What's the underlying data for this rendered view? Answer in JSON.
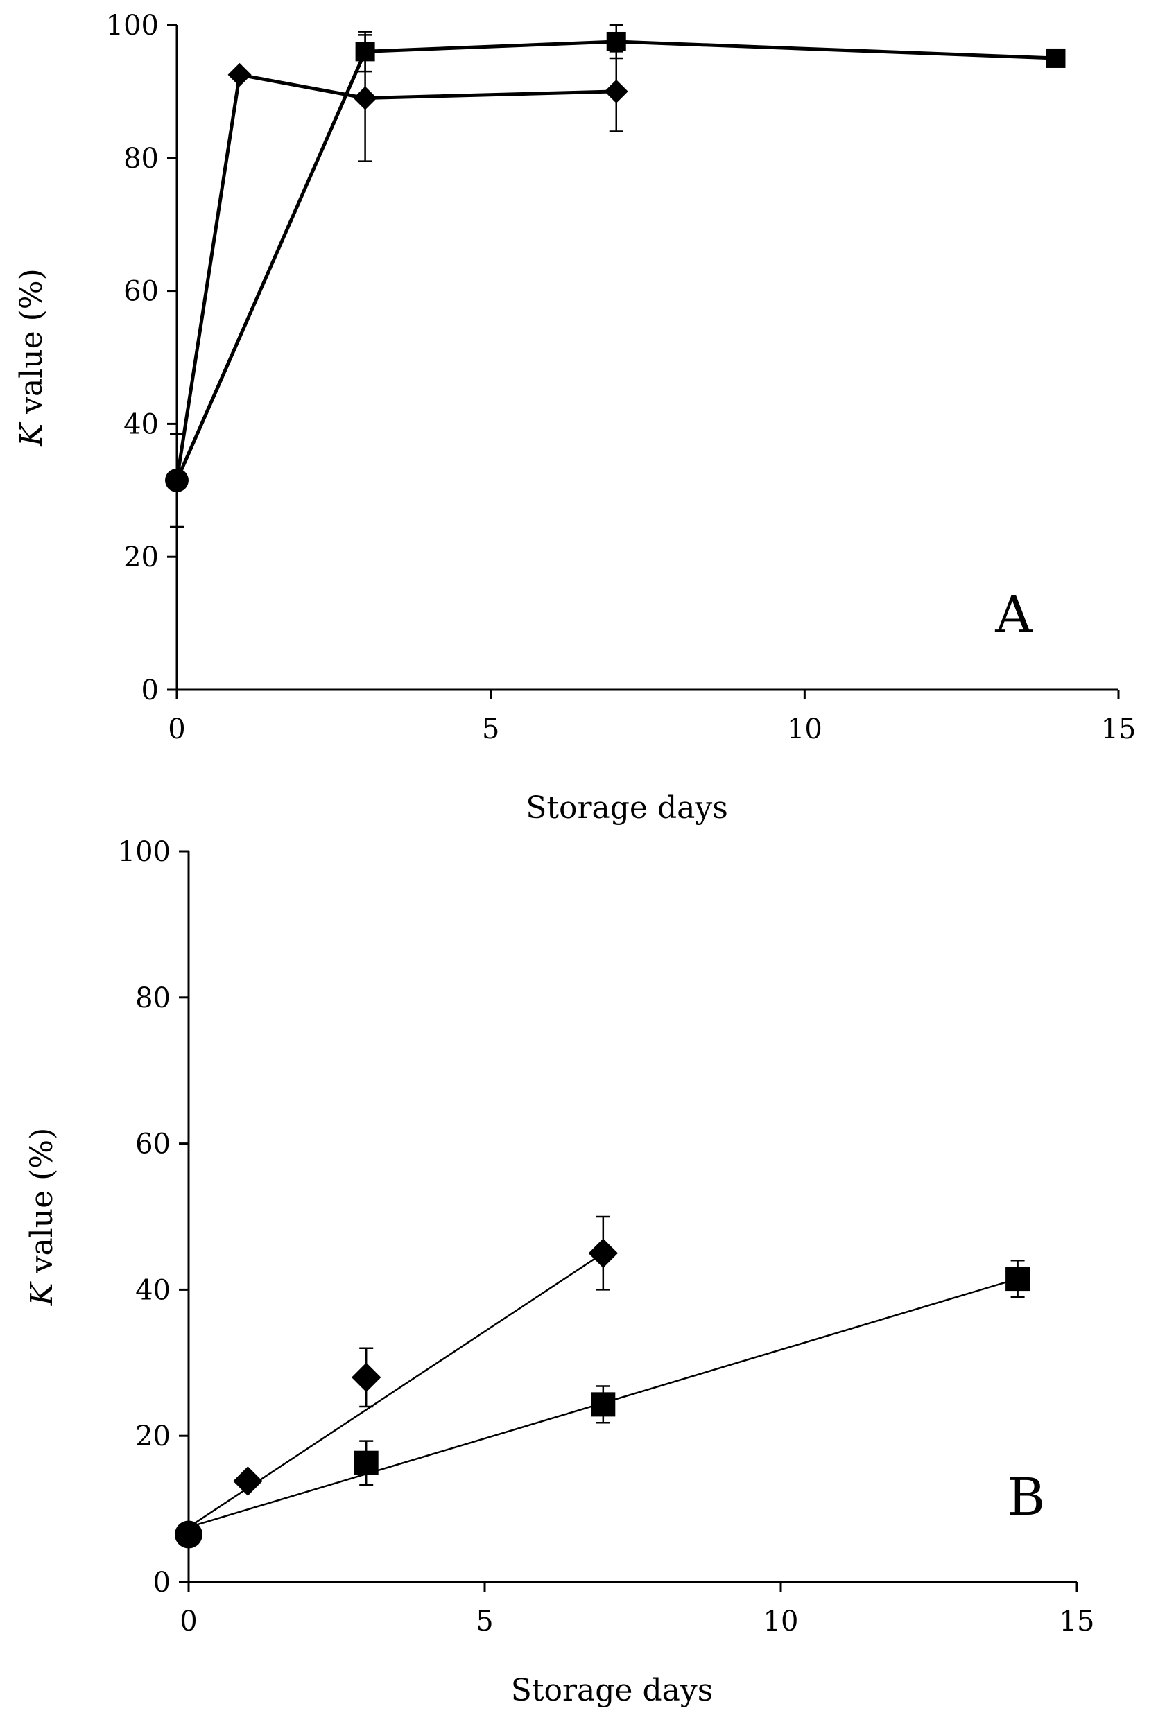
{
  "chart_data": [
    {
      "type": "line",
      "panel_label": "A",
      "xlabel": "Storage days",
      "ylabel_italic": "K",
      "ylabel_rest": " value (%)",
      "xlim": [
        0,
        15
      ],
      "ylim": [
        0,
        100
      ],
      "xticks": [
        0,
        5,
        10,
        15
      ],
      "yticks": [
        0,
        20,
        40,
        60,
        80,
        100
      ],
      "xtick_labels": [
        "0",
        "5",
        "10",
        "15"
      ],
      "ytick_labels": [
        "0",
        "20",
        "40",
        "60",
        "80",
        "100"
      ],
      "initial_point": {
        "marker": "circle",
        "x": 0,
        "y": 31.5,
        "err": 7
      },
      "series": [
        {
          "name": "diamond",
          "marker": "diamond",
          "x": [
            0,
            1,
            3,
            7
          ],
          "y": [
            31.5,
            92.5,
            89,
            90
          ],
          "err": [
            null,
            null,
            9.5,
            6
          ]
        },
        {
          "name": "square",
          "marker": "square",
          "x": [
            0,
            3,
            7,
            14
          ],
          "y": [
            31.5,
            96,
            97.5,
            95
          ],
          "err": [
            null,
            3,
            2.5,
            null
          ]
        }
      ]
    },
    {
      "type": "line",
      "panel_label": "B",
      "xlabel": "Storage days",
      "ylabel_italic": "K",
      "ylabel_rest": " value (%)",
      "xlim": [
        0,
        15
      ],
      "ylim": [
        0,
        100
      ],
      "xticks": [
        0,
        5,
        10,
        15
      ],
      "yticks": [
        0,
        20,
        40,
        60,
        80,
        100
      ],
      "xtick_labels": [
        "0",
        "5",
        "10",
        "15"
      ],
      "ytick_labels": [
        "0",
        "20",
        "40",
        "60",
        "80",
        "100"
      ],
      "initial_point": {
        "marker": "circle",
        "x": 0,
        "y": 6.5,
        "err": null
      },
      "series": [
        {
          "name": "diamond",
          "marker": "diamond",
          "x": [
            1,
            3,
            7
          ],
          "y": [
            13.8,
            28,
            45
          ],
          "err": [
            null,
            4,
            5
          ],
          "fit": [
            [
              0,
              7.5
            ],
            [
              7,
              45
            ]
          ]
        },
        {
          "name": "square",
          "marker": "square",
          "x": [
            3,
            7,
            14
          ],
          "y": [
            16.3,
            24.3,
            41.5
          ],
          "err": [
            3,
            2.5,
            2.5
          ],
          "fit": [
            [
              0,
              7.5
            ],
            [
              14,
              41.5
            ]
          ]
        }
      ]
    }
  ]
}
